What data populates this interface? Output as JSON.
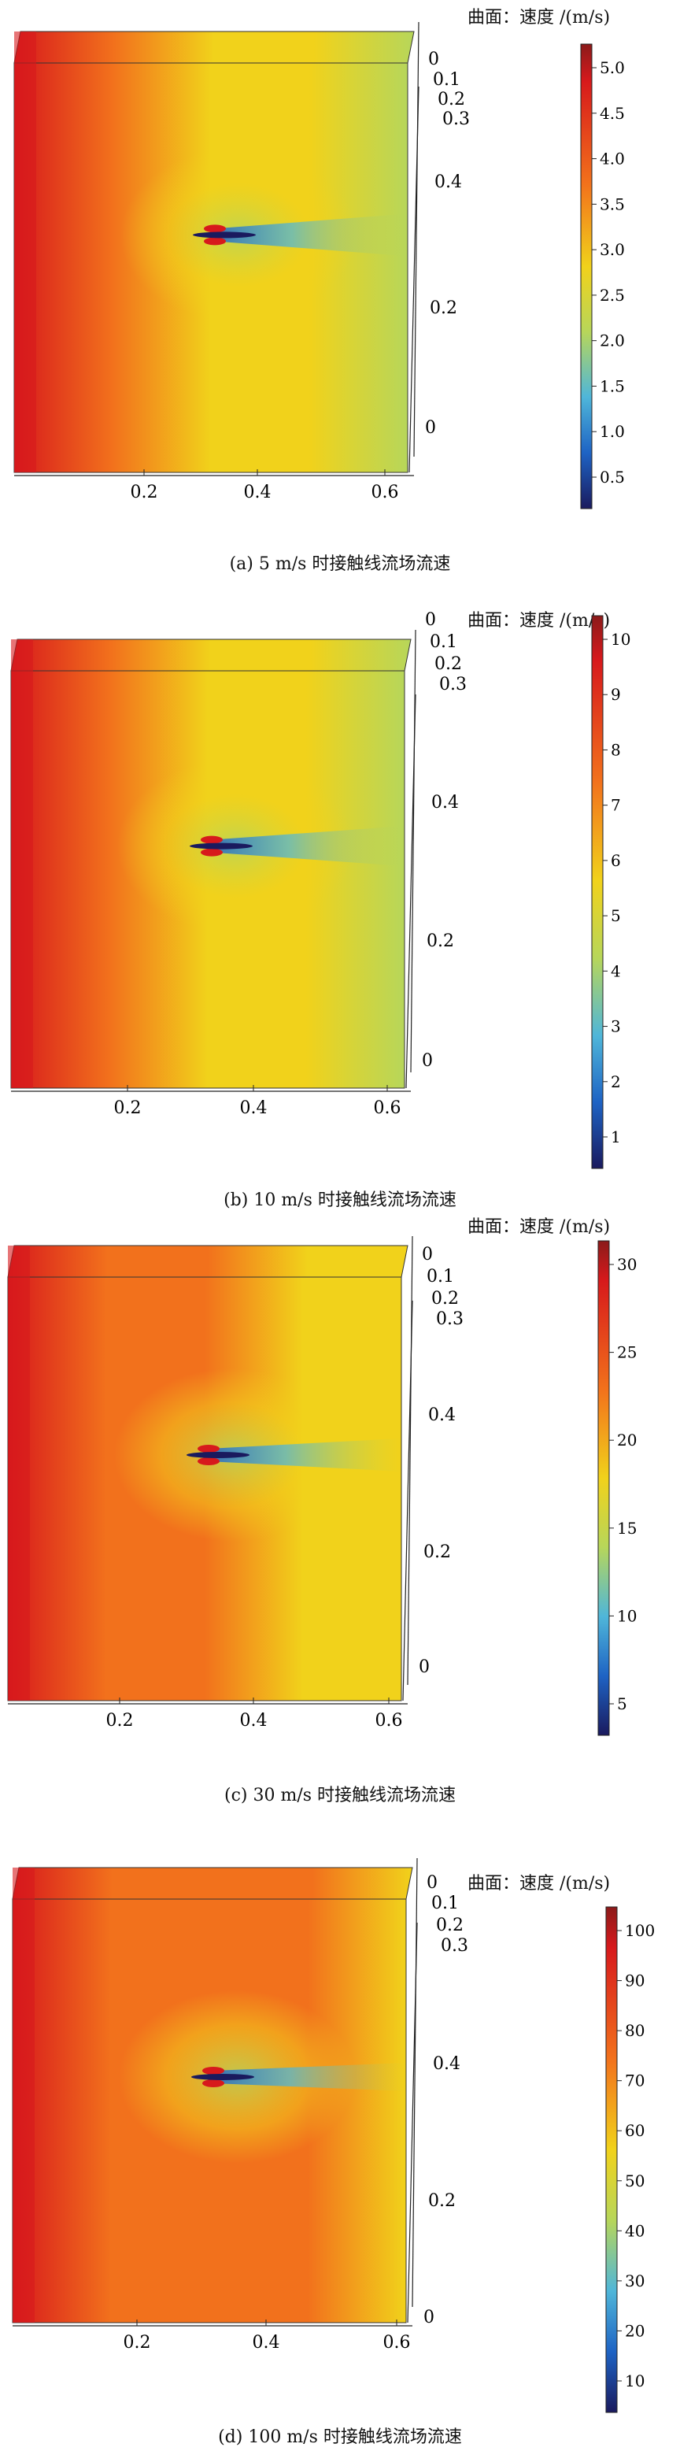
{
  "figures": [
    {
      "caption": "(a) 5 m/s 时接触线流场流速",
      "legend_title": "曲面：速度 /(m/s)",
      "colorbar_ticks": [
        "5.0",
        "4.5",
        "4.0",
        "3.5",
        "3.0",
        "2.5",
        "2.0",
        "1.5",
        "1.0",
        "0.5"
      ],
      "x_ticks": [
        "0.2",
        "0.4",
        "0.6"
      ],
      "depth_ticks": [
        "0",
        "0.1",
        "0.2",
        "0.3"
      ],
      "side_ticks": [
        "0.4",
        "0.2",
        "0"
      ]
    },
    {
      "caption": "(b) 10 m/s 时接触线流场流速",
      "legend_title": "曲面：速度 /(m/s)",
      "colorbar_ticks": [
        "10",
        "9",
        "8",
        "7",
        "6",
        "5",
        "4",
        "3",
        "2",
        "1"
      ],
      "x_ticks": [
        "0.2",
        "0.4",
        "0.6"
      ],
      "depth_ticks": [
        "0",
        "0.1",
        "0.2",
        "0.3"
      ],
      "side_ticks": [
        "0.4",
        "0.2",
        "0"
      ]
    },
    {
      "caption": "(c) 30 m/s 时接触线流场流速",
      "legend_title": "曲面：速度 /(m/s)",
      "colorbar_ticks": [
        "30",
        "25",
        "20",
        "15",
        "10",
        "5"
      ],
      "x_ticks": [
        "0.2",
        "0.4",
        "0.6"
      ],
      "depth_ticks": [
        "0",
        "0.1",
        "0.2",
        "0.3"
      ],
      "side_ticks": [
        "0.4",
        "0.2",
        "0"
      ]
    },
    {
      "caption": "(d) 100 m/s 时接触线流场流速",
      "legend_title": "曲面：速度 /(m/s)",
      "colorbar_ticks": [
        "100",
        "90",
        "80",
        "70",
        "60",
        "50",
        "40",
        "30",
        "20",
        "10"
      ],
      "x_ticks": [
        "0.2",
        "0.4",
        "0.6"
      ],
      "depth_ticks": [
        "0",
        "0.1",
        "0.2",
        "0.3"
      ],
      "side_ticks": [
        "0.4",
        "0.2",
        "0"
      ]
    }
  ],
  "colors": {
    "red": "#d7191c",
    "orange": "#f2711c",
    "yellow": "#f1d21b",
    "green": "#b7d65a",
    "cyan": "#4fb6d9",
    "blue": "#1e63c4",
    "navy": "#1a1a5e"
  }
}
